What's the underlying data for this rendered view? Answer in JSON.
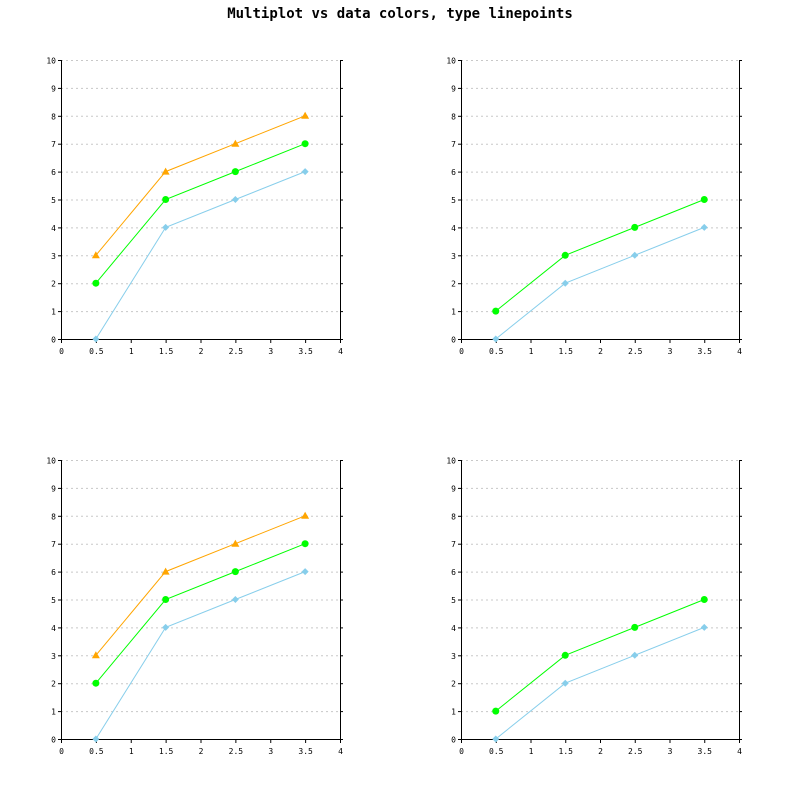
{
  "title": "Multiplot vs data colors, type linepoints",
  "colors": {
    "orange": "#FFA500",
    "green": "#00FF00",
    "skyblue": "#87CEEB"
  },
  "chart_data": [
    {
      "type": "line",
      "position": "top-left",
      "x": [
        0.5,
        1.5,
        2.5,
        3.5
      ],
      "xlim": [
        0,
        4
      ],
      "ylim": [
        0,
        10
      ],
      "xticks": [
        "0",
        "0.5",
        "1",
        "1.5",
        "2",
        "2.5",
        "3",
        "3.5",
        "4"
      ],
      "yticks": [
        "0",
        "1",
        "2",
        "3",
        "4",
        "5",
        "6",
        "7",
        "8",
        "9",
        "10"
      ],
      "grid": true,
      "series": [
        {
          "values": [
            3,
            6,
            7,
            8
          ],
          "color": "#FFA500",
          "marker": "triangle"
        },
        {
          "values": [
            2,
            5,
            6,
            7
          ],
          "color": "#00FF00",
          "marker": "circle"
        },
        {
          "values": [
            0,
            4,
            5,
            6
          ],
          "color": "#87CEEB",
          "marker": "diamond"
        }
      ]
    },
    {
      "type": "line",
      "position": "top-right",
      "x": [
        0.5,
        1.5,
        2.5,
        3.5
      ],
      "xlim": [
        0,
        4
      ],
      "ylim": [
        0,
        10
      ],
      "xticks": [
        "0",
        "0.5",
        "1",
        "1.5",
        "2",
        "2.5",
        "3",
        "3.5",
        "4"
      ],
      "yticks": [
        "0",
        "1",
        "2",
        "3",
        "4",
        "5",
        "6",
        "7",
        "8",
        "9",
        "10"
      ],
      "grid": true,
      "series": [
        {
          "values": [
            1,
            3,
            4,
            5
          ],
          "color": "#00FF00",
          "marker": "circle"
        },
        {
          "values": [
            0,
            2,
            3,
            4
          ],
          "color": "#87CEEB",
          "marker": "diamond"
        }
      ]
    },
    {
      "type": "line",
      "position": "bottom-left",
      "x": [
        0.5,
        1.5,
        2.5,
        3.5
      ],
      "xlim": [
        0,
        4
      ],
      "ylim": [
        0,
        10
      ],
      "xticks": [
        "0",
        "0.5",
        "1",
        "1.5",
        "2",
        "2.5",
        "3",
        "3.5",
        "4"
      ],
      "yticks": [
        "0",
        "1",
        "2",
        "3",
        "4",
        "5",
        "6",
        "7",
        "8",
        "9",
        "10"
      ],
      "grid": true,
      "series": [
        {
          "values": [
            3,
            6,
            7,
            8
          ],
          "color": "#FFA500",
          "marker": "triangle"
        },
        {
          "values": [
            2,
            5,
            6,
            7
          ],
          "color": "#00FF00",
          "marker": "circle"
        },
        {
          "values": [
            0,
            4,
            5,
            6
          ],
          "color": "#87CEEB",
          "marker": "diamond"
        }
      ]
    },
    {
      "type": "line",
      "position": "bottom-right",
      "x": [
        0.5,
        1.5,
        2.5,
        3.5
      ],
      "xlim": [
        0,
        4
      ],
      "ylim": [
        0,
        10
      ],
      "xticks": [
        "0",
        "0.5",
        "1",
        "1.5",
        "2",
        "2.5",
        "3",
        "3.5",
        "4"
      ],
      "yticks": [
        "0",
        "1",
        "2",
        "3",
        "4",
        "5",
        "6",
        "7",
        "8",
        "9",
        "10"
      ],
      "grid": true,
      "series": [
        {
          "values": [
            1,
            3,
            4,
            5
          ],
          "color": "#00FF00",
          "marker": "circle"
        },
        {
          "values": [
            0,
            2,
            3,
            4
          ],
          "color": "#87CEEB",
          "marker": "diamond"
        }
      ]
    }
  ]
}
